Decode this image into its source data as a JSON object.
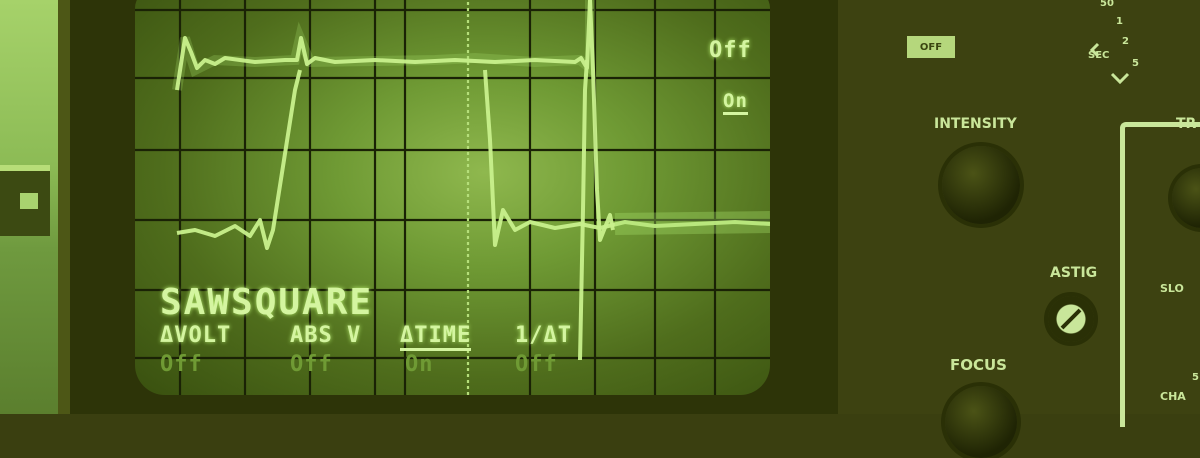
{
  "screen": {
    "waveform_name": "SAWSQUARE",
    "menu_labels": [
      "ΔVOLT",
      "ABS V",
      "ΔTIME",
      "1/ΔT"
    ],
    "menu_states": [
      "Off",
      "Off",
      "On",
      "Off"
    ],
    "side_labels": [
      "Off",
      "On"
    ]
  },
  "panel": {
    "off_button": "OFF",
    "sec_label": "SEC",
    "scale_top": "50",
    "scale_1": "1",
    "scale_2": "2",
    "scale_5": "5",
    "intensity": "INTENSITY",
    "astig": "ASTIG",
    "focus": "FOCUS",
    "trig_partial": "TR",
    "slope_partial": "SLO",
    "cha_partial": "CHA",
    "cha_value": "5"
  },
  "colors": {
    "phosphor": "#c8f08c",
    "tint": "#3a3f10"
  }
}
